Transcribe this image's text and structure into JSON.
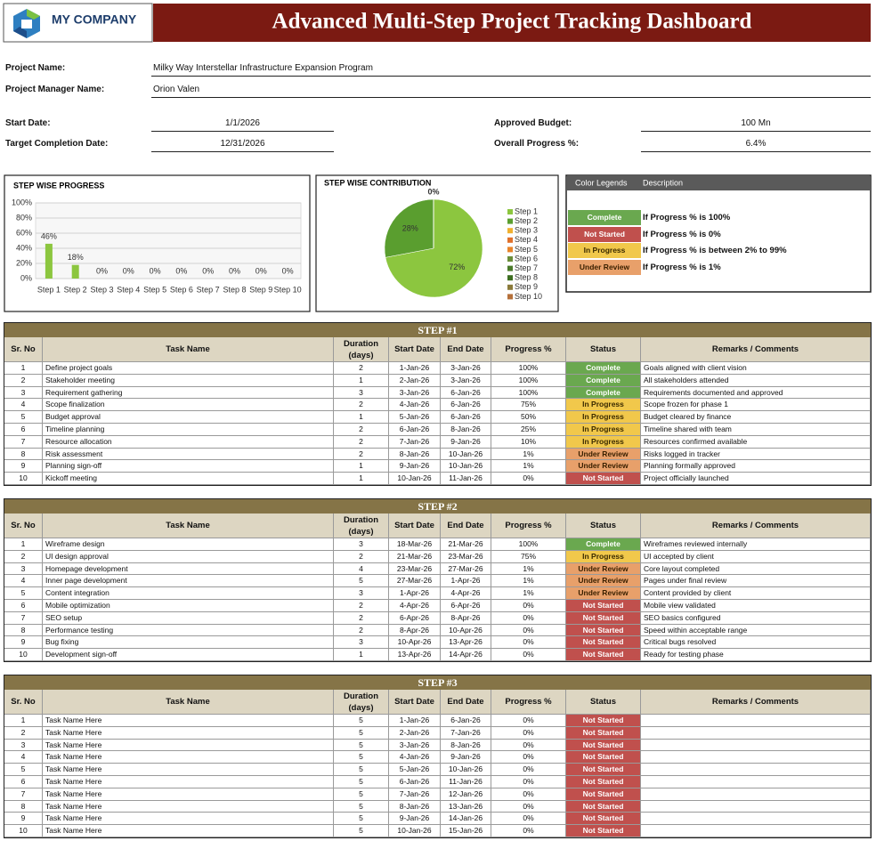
{
  "header": {
    "company": "MY COMPANY",
    "title": "Advanced Multi-Step Project Tracking Dashboard"
  },
  "project": {
    "project_name": {
      "label": "Project Name:",
      "value": "Milky Way Interstellar Infrastructure Expansion Program"
    },
    "manager": {
      "label": "Project Manager Name:",
      "value": "Orion Valen"
    },
    "start_date": {
      "label": "Start Date:",
      "value": "1/1/2026"
    },
    "target_date": {
      "label": "Target Completion Date:",
      "value": "12/31/2026"
    },
    "budget": {
      "label": "Approved Budget:",
      "value": "100 Mn"
    },
    "progress": {
      "label": "Overall Progress %:",
      "value": "6.4%"
    }
  },
  "chart_data": [
    {
      "type": "bar",
      "title": "STEP WISE PROGRESS",
      "categories": [
        "Step 1",
        "Step 2",
        "Step 3",
        "Step 4",
        "Step 5",
        "Step 6",
        "Step 7",
        "Step 8",
        "Step 9",
        "Step 10"
      ],
      "values": [
        46,
        18,
        0,
        0,
        0,
        0,
        0,
        0,
        0,
        0
      ],
      "value_labels": [
        "46%",
        "18%",
        "0%",
        "0%",
        "0%",
        "0%",
        "0%",
        "0%",
        "0%",
        "0%"
      ],
      "color": "#8cc63f",
      "ylim": [
        0,
        100
      ],
      "yticks": [
        {
          "value": 0,
          "label": "0%"
        },
        {
          "value": 20,
          "label": "20%"
        },
        {
          "value": 40,
          "label": "40%"
        },
        {
          "value": 60,
          "label": "60%"
        },
        {
          "value": 80,
          "label": "80%"
        },
        {
          "value": 100,
          "label": "100%"
        }
      ],
      "grid": true
    },
    {
      "type": "pie",
      "title": "STEP WISE CONTRIBUTION",
      "categories": [
        "Step 1",
        "Step 2",
        "Step 3",
        "Step 4",
        "Step 5",
        "Step 6",
        "Step 7",
        "Step 8",
        "Step 9",
        "Step 10"
      ],
      "values": [
        72,
        28,
        0,
        0,
        0,
        0,
        0,
        0,
        0,
        0
      ],
      "value_labels": [
        "72%",
        "28%",
        "0%",
        null,
        null,
        null,
        null,
        null,
        null,
        null
      ],
      "colors": [
        "#8cc63f",
        "#5a9e2f",
        "#f0b030",
        "#e0702a",
        "#e8842a",
        "#6b8e3a",
        "#4a7a2a",
        "#3d6e20",
        "#8a7a3a",
        "#b5703a"
      ],
      "legend": "right"
    }
  ],
  "legend": {
    "headers": [
      "Color Legends",
      "Description"
    ],
    "items": [
      {
        "label": "Complete",
        "color": "#6aa84f",
        "text_color": "#ffffff",
        "description": "If Progress % is 100%"
      },
      {
        "label": "Not Started",
        "color": "#c0504d",
        "text_color": "#ffffff",
        "description": "If Progress % is 0%"
      },
      {
        "label": "In Progress",
        "color": "#f1c84b",
        "text_color": "#3a2a00",
        "description": "If Progress % is between 2% to 99%"
      },
      {
        "label": "Under Review",
        "color": "#e8a06a",
        "text_color": "#3a2000",
        "description": "If Progress % is 1%"
      }
    ]
  },
  "steps": [
    {
      "title": "STEP #1",
      "columns": [
        "Sr. No",
        "Task Name",
        "Duration (days)",
        "Start Date",
        "End Date",
        "Progress %",
        "Status",
        "Remarks / Comments"
      ],
      "rows": [
        [
          1,
          "Define project goals",
          2,
          "1-Jan-26",
          "3-Jan-26",
          "100%",
          "Complete",
          "Goals aligned with client vision"
        ],
        [
          2,
          "Stakeholder meeting",
          1,
          "2-Jan-26",
          "3-Jan-26",
          "100%",
          "Complete",
          "All stakeholders attended"
        ],
        [
          3,
          "Requirement gathering",
          3,
          "3-Jan-26",
          "6-Jan-26",
          "100%",
          "Complete",
          "Requirements documented and approved"
        ],
        [
          4,
          "Scope finalization",
          2,
          "4-Jan-26",
          "6-Jan-26",
          "75%",
          "In Progress",
          "Scope frozen for phase 1"
        ],
        [
          5,
          "Budget approval",
          1,
          "5-Jan-26",
          "6-Jan-26",
          "50%",
          "In Progress",
          "Budget cleared by finance"
        ],
        [
          6,
          "Timeline planning",
          2,
          "6-Jan-26",
          "8-Jan-26",
          "25%",
          "In Progress",
          "Timeline shared with team"
        ],
        [
          7,
          "Resource allocation",
          2,
          "7-Jan-26",
          "9-Jan-26",
          "10%",
          "In Progress",
          "Resources confirmed available"
        ],
        [
          8,
          "Risk assessment",
          2,
          "8-Jan-26",
          "10-Jan-26",
          "1%",
          "Under Review",
          "Risks logged in tracker"
        ],
        [
          9,
          "Planning sign-off",
          1,
          "9-Jan-26",
          "10-Jan-26",
          "1%",
          "Under Review",
          "Planning formally approved"
        ],
        [
          10,
          "Kickoff meeting",
          1,
          "10-Jan-26",
          "11-Jan-26",
          "0%",
          "Not Started",
          "Project officially launched"
        ]
      ]
    },
    {
      "title": "STEP #2",
      "columns": [
        "Sr. No",
        "Task Name",
        "Duration (days)",
        "Start Date",
        "End Date",
        "Progress %",
        "Status",
        "Remarks / Comments"
      ],
      "rows": [
        [
          1,
          "Wireframe design",
          3,
          "18-Mar-26",
          "21-Mar-26",
          "100%",
          "Complete",
          "Wireframes reviewed internally"
        ],
        [
          2,
          "UI design approval",
          2,
          "21-Mar-26",
          "23-Mar-26",
          "75%",
          "In Progress",
          "UI accepted by client"
        ],
        [
          3,
          "Homepage development",
          4,
          "23-Mar-26",
          "27-Mar-26",
          "1%",
          "Under Review",
          "Core layout completed"
        ],
        [
          4,
          "Inner page development",
          5,
          "27-Mar-26",
          "1-Apr-26",
          "1%",
          "Under Review",
          "Pages under final review"
        ],
        [
          5,
          "Content integration",
          3,
          "1-Apr-26",
          "4-Apr-26",
          "1%",
          "Under Review",
          "Content provided by client"
        ],
        [
          6,
          "Mobile optimization",
          2,
          "4-Apr-26",
          "6-Apr-26",
          "0%",
          "Not Started",
          "Mobile view validated"
        ],
        [
          7,
          "SEO setup",
          2,
          "6-Apr-26",
          "8-Apr-26",
          "0%",
          "Not Started",
          "SEO basics configured"
        ],
        [
          8,
          "Performance testing",
          2,
          "8-Apr-26",
          "10-Apr-26",
          "0%",
          "Not Started",
          "Speed within acceptable range"
        ],
        [
          9,
          "Bug fixing",
          3,
          "10-Apr-26",
          "13-Apr-26",
          "0%",
          "Not Started",
          "Critical bugs resolved"
        ],
        [
          10,
          "Development sign-off",
          1,
          "13-Apr-26",
          "14-Apr-26",
          "0%",
          "Not Started",
          "Ready for testing phase"
        ]
      ]
    },
    {
      "title": "STEP #3",
      "columns": [
        "Sr. No",
        "Task Name",
        "Duration (days)",
        "Start Date",
        "End Date",
        "Progress %",
        "Status",
        "Remarks / Comments"
      ],
      "rows": [
        [
          1,
          "Task Name Here",
          5,
          "1-Jan-26",
          "6-Jan-26",
          "0%",
          "Not Started"
        ],
        [
          2,
          "Task Name Here",
          5,
          "2-Jan-26",
          "7-Jan-26",
          "0%",
          "Not Started"
        ],
        [
          3,
          "Task Name Here",
          5,
          "3-Jan-26",
          "8-Jan-26",
          "0%",
          "Not Started"
        ],
        [
          4,
          "Task Name Here",
          5,
          "4-Jan-26",
          "9-Jan-26",
          "0%",
          "Not Started"
        ],
        [
          5,
          "Task Name Here",
          5,
          "5-Jan-26",
          "10-Jan-26",
          "0%",
          "Not Started"
        ],
        [
          6,
          "Task Name Here",
          5,
          "6-Jan-26",
          "11-Jan-26",
          "0%",
          "Not Started"
        ],
        [
          7,
          "Task Name Here",
          5,
          "7-Jan-26",
          "12-Jan-26",
          "0%",
          "Not Started"
        ],
        [
          8,
          "Task Name Here",
          5,
          "8-Jan-26",
          "13-Jan-26",
          "0%",
          "Not Started"
        ],
        [
          9,
          "Task Name Here",
          5,
          "9-Jan-26",
          "14-Jan-26",
          "0%",
          "Not Started"
        ],
        [
          10,
          "Task Name Here",
          5,
          "10-Jan-26",
          "15-Jan-26",
          "0%",
          "Not Started"
        ]
      ]
    }
  ]
}
